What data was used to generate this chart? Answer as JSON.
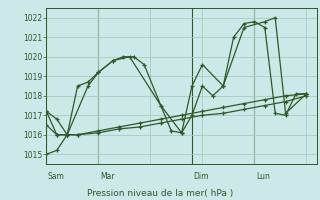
{
  "background_color": "#cce8e8",
  "grid_color": "#a8ccbe",
  "line_color": "#2d5a27",
  "xlabel": "Pression niveau de la mer( hPa )",
  "ylim": [
    1014.5,
    1022.5
  ],
  "yticks": [
    1015,
    1016,
    1017,
    1018,
    1019,
    1020,
    1021,
    1022
  ],
  "day_labels": [
    "Sam",
    "Mar",
    "Dim",
    "Lun"
  ],
  "xlim": [
    0,
    13
  ],
  "series": [
    {
      "x": [
        0.0,
        0.5,
        1.0,
        1.5,
        2.0,
        2.5,
        3.2,
        3.7,
        4.2,
        4.7,
        5.5,
        6.0,
        6.5,
        7.0,
        7.5,
        8.0,
        8.5,
        9.0,
        9.5,
        10.0,
        10.5,
        11.0,
        11.5,
        12.0,
        12.5
      ],
      "y": [
        1017.2,
        1016.8,
        1016.0,
        1018.5,
        1018.7,
        1019.2,
        1019.8,
        1020.0,
        1020.0,
        1019.6,
        1017.5,
        1016.2,
        1016.1,
        1017.0,
        1018.5,
        1018.0,
        1018.5,
        1021.0,
        1021.7,
        1021.8,
        1021.5,
        1017.1,
        1017.0,
        1018.1,
        1018.1
      ]
    },
    {
      "x": [
        0.0,
        0.5,
        1.0,
        1.5,
        2.5,
        3.5,
        4.5,
        5.5,
        6.5,
        7.5,
        8.5,
        9.5,
        10.5,
        11.5,
        12.5
      ],
      "y": [
        1015.0,
        1015.2,
        1016.0,
        1016.0,
        1016.2,
        1016.4,
        1016.6,
        1016.8,
        1017.0,
        1017.2,
        1017.4,
        1017.6,
        1017.8,
        1018.0,
        1018.1
      ]
    },
    {
      "x": [
        0.0,
        0.5,
        1.0,
        1.5,
        2.5,
        3.5,
        4.5,
        5.5,
        6.5,
        7.5,
        8.5,
        9.5,
        10.5,
        11.5,
        12.5
      ],
      "y": [
        1016.5,
        1016.0,
        1016.0,
        1016.0,
        1016.1,
        1016.3,
        1016.4,
        1016.6,
        1016.8,
        1017.0,
        1017.1,
        1017.3,
        1017.5,
        1017.7,
        1018.0
      ]
    },
    {
      "x": [
        0.0,
        0.5,
        1.0,
        2.0,
        2.5,
        3.2,
        4.0,
        5.5,
        6.5,
        7.0,
        7.5,
        8.5,
        9.5,
        10.5,
        11.0,
        11.5,
        12.5
      ],
      "y": [
        1017.2,
        1016.0,
        1016.0,
        1018.5,
        1019.2,
        1019.8,
        1020.0,
        1017.5,
        1016.1,
        1018.5,
        1019.6,
        1018.5,
        1021.5,
        1021.8,
        1022.0,
        1017.1,
        1018.1
      ]
    }
  ]
}
